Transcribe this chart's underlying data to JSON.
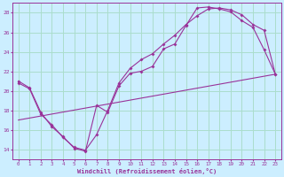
{
  "xlabel": "Windchill (Refroidissement éolien,°C)",
  "bg_color": "#cceeff",
  "grid_color": "#aaddcc",
  "line_color": "#993399",
  "xlim": [
    -0.5,
    23.5
  ],
  "ylim": [
    13.0,
    29.0
  ],
  "yticks": [
    14,
    16,
    18,
    20,
    22,
    24,
    26,
    28
  ],
  "xticks": [
    0,
    1,
    2,
    3,
    4,
    5,
    6,
    7,
    8,
    9,
    10,
    11,
    12,
    13,
    14,
    15,
    16,
    17,
    18,
    19,
    20,
    21,
    22,
    23
  ],
  "series1_x": [
    0,
    1,
    2,
    3,
    4,
    5,
    6,
    7,
    8,
    9,
    10,
    11,
    12,
    13,
    14,
    15,
    16,
    17,
    18,
    19,
    20,
    21,
    22,
    23
  ],
  "series1_y": [
    21.0,
    20.3,
    17.8,
    16.3,
    15.3,
    14.1,
    13.8,
    18.5,
    17.8,
    20.5,
    21.8,
    22.0,
    22.5,
    24.3,
    24.8,
    26.7,
    28.5,
    28.6,
    28.4,
    28.1,
    27.2,
    26.5,
    24.2,
    21.7
  ],
  "series2_x": [
    0,
    1,
    2,
    3,
    4,
    5,
    6,
    7,
    8,
    9,
    10,
    11,
    12,
    13,
    14,
    15,
    16,
    17,
    18,
    19,
    20,
    21,
    22,
    23
  ],
  "series2_y": [
    20.8,
    20.2,
    17.6,
    16.5,
    15.2,
    14.2,
    13.9,
    15.5,
    18.0,
    20.8,
    22.3,
    23.2,
    23.8,
    24.8,
    25.7,
    26.8,
    27.7,
    28.4,
    28.5,
    28.3,
    27.8,
    26.8,
    26.2,
    21.7
  ],
  "series3_x": [
    0,
    23
  ],
  "series3_y": [
    17.0,
    21.7
  ]
}
